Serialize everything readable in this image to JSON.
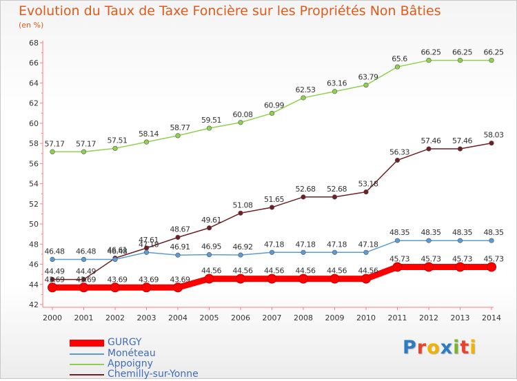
{
  "header": {
    "title": "Evolution du Taux de Taxe Foncière sur les Propriétés Non Bâties",
    "unit": "(en %)"
  },
  "brand": {
    "letters": [
      {
        "ch": "P",
        "color": "#2e7bc4"
      },
      {
        "ch": "r",
        "color": "#e8432b"
      },
      {
        "ch": "o",
        "color": "#f0b400"
      },
      {
        "ch": "x",
        "color": "#2e7bc4"
      },
      {
        "ch": "i",
        "color": "#7ab32e"
      },
      {
        "ch": "t",
        "color": "#e8432b"
      },
      {
        "ch": "i",
        "color": "#f0b400"
      }
    ]
  },
  "chart_data": {
    "type": "line",
    "x": [
      "2000",
      "2001",
      "2002",
      "2003",
      "2004",
      "2005",
      "2006",
      "2007",
      "2008",
      "2009",
      "2010",
      "2011",
      "2012",
      "2013",
      "2014"
    ],
    "ylim": [
      42,
      68
    ],
    "yticks": [
      42,
      44,
      46,
      48,
      50,
      52,
      54,
      56,
      58,
      60,
      62,
      64,
      66,
      68
    ],
    "grid": false,
    "legend_position": "bottom-left",
    "series": [
      {
        "name": "GURGY",
        "color": "#ff0000",
        "labels": [
          "43.69",
          "43.69",
          "43.69",
          "43.69",
          "43.69",
          "44.56",
          "44.56",
          "44.56",
          "44.56",
          "44.56",
          "44.56",
          "45.73",
          "45.73",
          "45.73",
          "45.73"
        ],
        "values": [
          43.69,
          43.69,
          43.69,
          43.69,
          43.69,
          44.56,
          44.56,
          44.56,
          44.56,
          44.56,
          44.56,
          45.73,
          45.73,
          45.73,
          45.73
        ]
      },
      {
        "name": "Monéteau",
        "color": "#5b9bd5",
        "labels": [
          "46.48",
          "46.48",
          "46.48",
          "47.18",
          "46.91",
          "46.95",
          "46.92",
          "47.18",
          "47.18",
          "47.18",
          "47.18",
          "48.35",
          "48.35",
          "48.35",
          "48.35"
        ],
        "values": [
          46.48,
          46.48,
          46.48,
          47.18,
          46.91,
          46.95,
          46.92,
          47.18,
          47.18,
          47.18,
          47.18,
          48.35,
          48.35,
          48.35,
          48.35
        ]
      },
      {
        "name": "Appoigny",
        "color": "#8fd14f",
        "labels": [
          "57.17",
          "57.17",
          "57.51",
          "58.14",
          "58.77",
          "59.51",
          "60.08",
          "60.99",
          "62.53",
          "63.16",
          "63.79",
          "65.6",
          "66.25",
          "66.25",
          "66.25"
        ],
        "values": [
          57.17,
          57.17,
          57.51,
          58.14,
          58.77,
          59.51,
          60.08,
          60.99,
          62.53,
          63.16,
          63.79,
          65.6,
          66.25,
          66.25,
          66.25
        ]
      },
      {
        "name": "Chemilly-sur-Yonne",
        "color": "#6e1f24",
        "labels": [
          "44.49",
          "44.49",
          "46.61",
          "47.61",
          "48.67",
          "49.61",
          "51.08",
          "51.65",
          "52.68",
          "52.68",
          "53.18",
          "56.33",
          "57.46",
          "57.46",
          "58.03"
        ],
        "values": [
          44.49,
          44.49,
          46.61,
          47.61,
          48.67,
          49.61,
          51.08,
          51.65,
          52.68,
          52.68,
          53.18,
          56.33,
          57.46,
          57.46,
          58.03
        ]
      }
    ]
  }
}
